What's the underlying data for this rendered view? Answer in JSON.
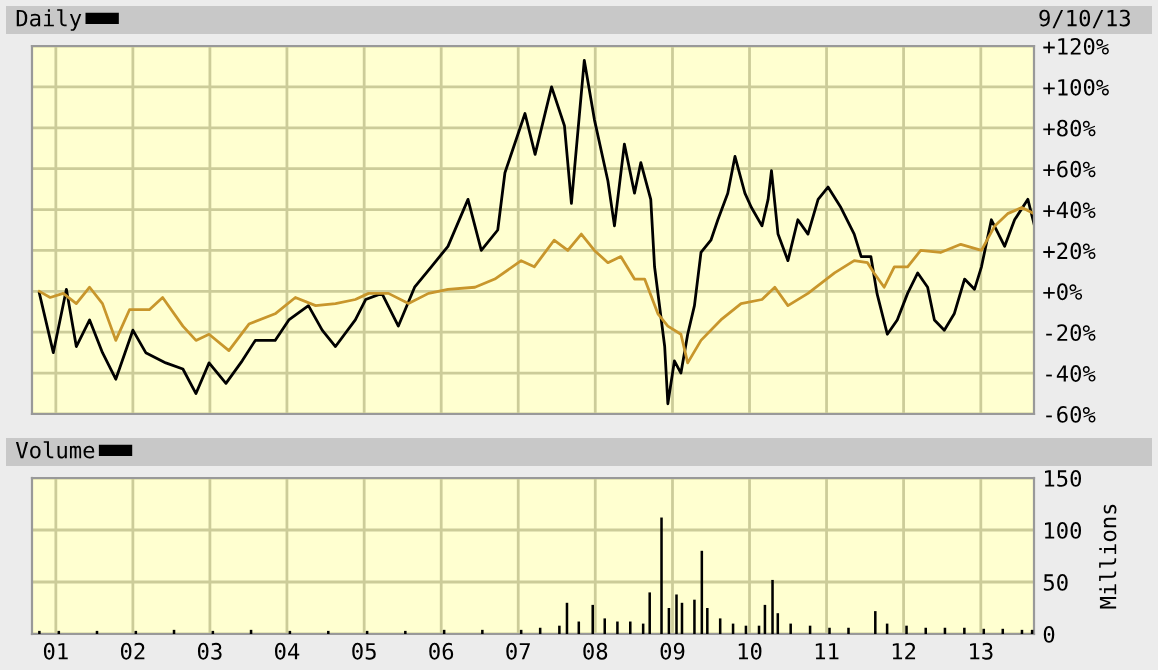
{
  "chart_data": [
    {
      "type": "line",
      "legend": "top",
      "grid": true,
      "tick_labels": "y",
      "annotations": [
        "9/10/13"
      ],
      "xlim": [
        "2000-09-10",
        "2013-09-10"
      ],
      "xticks": [
        {
          "value": "2001-01-01",
          "label": null
        },
        {
          "value": "2002-01-01",
          "label": null
        },
        {
          "value": "2003-01-01",
          "label": null
        },
        {
          "value": "2004-01-01",
          "label": null
        },
        {
          "value": "2005-01-01",
          "label": null
        },
        {
          "value": "2006-01-01",
          "label": null
        },
        {
          "value": "2007-01-01",
          "label": null
        },
        {
          "value": "2008-01-01",
          "label": null
        },
        {
          "value": "2009-01-01",
          "label": null
        },
        {
          "value": "2010-01-01",
          "label": null
        },
        {
          "value": "2011-01-01",
          "label": null
        },
        {
          "value": "2012-01-01",
          "label": null
        },
        {
          "value": "2013-01-01",
          "label": null
        }
      ],
      "ylim": [
        -60,
        120
      ],
      "yticks": [
        {
          "value": -60,
          "label": "-60%"
        },
        {
          "value": -40,
          "label": "-40%"
        },
        {
          "value": -20,
          "label": "-20%"
        },
        {
          "value": 0,
          "label": "+0%"
        },
        {
          "value": 20,
          "label": "+20%"
        },
        {
          "value": 40,
          "label": "+40%"
        },
        {
          "value": 60,
          "label": "+60%"
        },
        {
          "value": 80,
          "label": "+80%"
        },
        {
          "value": 100,
          "label": "+100%"
        },
        {
          "value": 120,
          "label": "+120%"
        }
      ],
      "series": [
        {
          "name": "Daily",
          "color": "#000000",
          "x": [
            "2000-10-15",
            "2000-12-20",
            "2001-02-20",
            "2001-04-08",
            "2001-06-10",
            "2001-08-10",
            "2001-10-12",
            "2002-01-01",
            "2002-03-03",
            "2002-06-06",
            "2002-08-26",
            "2002-10-27",
            "2002-12-28",
            "2003-03-18",
            "2003-06-03",
            "2003-08-04",
            "2003-11-06",
            "2004-01-10",
            "2004-04-12",
            "2004-06-16",
            "2004-08-18",
            "2004-11-20",
            "2005-01-08",
            "2005-03-26",
            "2005-06-12",
            "2005-08-28",
            "2005-11-15",
            "2006-02-02",
            "2006-05-08",
            "2006-07-10",
            "2006-09-26",
            "2006-10-30",
            "2007-02-02",
            "2007-03-22",
            "2007-06-08",
            "2007-08-08",
            "2007-09-10",
            "2007-11-10",
            "2007-12-28",
            "2008-03-01",
            "2008-04-01",
            "2008-05-18",
            "2008-07-05",
            "2008-08-04",
            "2008-09-20",
            "2008-10-08",
            "2008-11-25",
            "2008-12-10",
            "2009-01-10",
            "2009-02-10",
            "2009-03-14",
            "2009-04-15",
            "2009-05-16",
            "2009-07-02",
            "2009-08-04",
            "2009-09-20",
            "2009-10-24",
            "2009-12-10",
            "2010-01-10",
            "2010-03-01",
            "2010-03-30",
            "2010-04-15",
            "2010-05-16",
            "2010-07-02",
            "2010-08-18",
            "2010-10-05",
            "2010-11-22",
            "2011-01-08",
            "2011-03-10",
            "2011-05-12",
            "2011-06-14",
            "2011-07-30",
            "2011-08-28",
            "2011-10-16",
            "2011-12-02",
            "2012-01-20",
            "2012-03-08",
            "2012-04-24",
            "2012-05-26",
            "2012-07-12",
            "2012-08-28",
            "2012-10-16",
            "2012-12-02",
            "2013-01-04",
            "2013-02-20",
            "2013-04-24",
            "2013-06-10",
            "2013-08-12",
            "2013-09-10"
          ],
          "values": [
            -1,
            -30,
            1,
            -27,
            -14,
            -30,
            -43,
            -19,
            -30,
            -35,
            -38,
            -50,
            -35,
            -45,
            -34,
            -24,
            -24,
            -14,
            -7,
            -19,
            -27,
            -14,
            -4,
            -1,
            -17,
            2,
            12,
            22,
            45,
            20,
            30,
            58,
            87,
            67,
            100,
            81,
            43,
            113,
            84,
            54,
            32,
            72,
            48,
            63,
            45,
            12,
            -27,
            -55,
            -34,
            -40,
            -21,
            -7,
            19,
            25,
            35,
            48,
            66,
            48,
            41,
            32,
            45,
            59,
            28,
            15,
            35,
            28,
            45,
            51,
            41,
            28,
            17,
            17,
            -1,
            -21,
            -14,
            -1,
            9,
            2,
            -14,
            -19,
            -11,
            6,
            1,
            12,
            35,
            22,
            35,
            45,
            33
          ]
        },
        {
          "color": "#c8962c",
          "x": [
            "2000-10-15",
            "2000-12-05",
            "2001-02-05",
            "2001-04-08",
            "2001-06-10",
            "2001-08-10",
            "2001-10-12",
            "2001-12-16",
            "2002-03-20",
            "2002-05-22",
            "2002-08-26",
            "2002-10-27",
            "2002-12-28",
            "2003-04-01",
            "2003-07-05",
            "2003-11-06",
            "2004-02-10",
            "2004-05-16",
            "2004-08-18",
            "2004-11-20",
            "2005-01-22",
            "2005-04-26",
            "2005-07-30",
            "2005-11-02",
            "2006-02-02",
            "2006-06-10",
            "2006-09-12",
            "2007-01-15",
            "2007-03-18",
            "2007-06-20",
            "2007-08-24",
            "2007-10-27",
            "2007-12-28",
            "2008-03-01",
            "2008-05-01",
            "2008-07-05",
            "2008-08-22",
            "2008-10-24",
            "2008-12-10",
            "2009-02-10",
            "2009-03-14",
            "2009-05-16",
            "2009-08-18",
            "2009-11-22",
            "2010-03-01",
            "2010-05-01",
            "2010-07-02",
            "2010-10-05",
            "2011-02-08",
            "2011-05-12",
            "2011-07-14",
            "2011-08-14",
            "2011-10-01",
            "2011-11-18",
            "2012-01-20",
            "2012-03-22",
            "2012-06-24",
            "2012-09-28",
            "2013-01-04",
            "2013-03-08",
            "2013-05-08",
            "2013-07-14",
            "2013-09-10"
          ],
          "values": [
            0,
            -3,
            -1,
            -6,
            2,
            -6,
            -24,
            -9,
            -9,
            -3,
            -17,
            -24,
            -21,
            -29,
            -16,
            -11,
            -3,
            -7,
            -6,
            -4,
            -1,
            -1,
            -6,
            -1,
            1,
            2,
            6,
            15,
            12,
            25,
            20,
            28,
            20,
            14,
            17,
            6,
            6,
            -11,
            -17,
            -21,
            -35,
            -24,
            -14,
            -6,
            -4,
            2,
            -7,
            -1,
            9,
            15,
            14,
            9,
            2,
            12,
            12,
            20,
            19,
            23,
            20,
            32,
            38,
            41,
            38
          ]
        }
      ]
    },
    {
      "type": "bar",
      "legend": "top",
      "grid": true,
      "ylabel": "Millions",
      "xlim": [
        "2000-09-10",
        "2013-09-10"
      ],
      "xticks": [
        {
          "value": "2001-01-01",
          "label": "01"
        },
        {
          "value": "2002-01-01",
          "label": "02"
        },
        {
          "value": "2003-01-01",
          "label": "03"
        },
        {
          "value": "2004-01-01",
          "label": "04"
        },
        {
          "value": "2005-01-01",
          "label": "05"
        },
        {
          "value": "2006-01-01",
          "label": "06"
        },
        {
          "value": "2007-01-01",
          "label": "07"
        },
        {
          "value": "2008-01-01",
          "label": "08"
        },
        {
          "value": "2009-01-01",
          "label": "09"
        },
        {
          "value": "2010-01-01",
          "label": "10"
        },
        {
          "value": "2011-01-01",
          "label": "11"
        },
        {
          "value": "2012-01-01",
          "label": "12"
        },
        {
          "value": "2013-01-01",
          "label": "13"
        }
      ],
      "ylim": [
        0,
        150
      ],
      "yticks": [
        0,
        50,
        100,
        150
      ],
      "series": [
        {
          "name": "Volume",
          "color": "#000000",
          "x": [
            "2000-10-15",
            "2001-01-15",
            "2001-07-15",
            "2002-01-15",
            "2002-07-15",
            "2003-01-15",
            "2003-07-15",
            "2004-01-15",
            "2004-07-15",
            "2005-01-15",
            "2005-07-15",
            "2006-01-15",
            "2006-07-15",
            "2007-01-15",
            "2007-04-15",
            "2007-07-15",
            "2007-08-20",
            "2007-10-15",
            "2007-12-20",
            "2008-02-15",
            "2008-04-15",
            "2008-06-15",
            "2008-08-15",
            "2008-09-15",
            "2008-11-10",
            "2008-12-15",
            "2009-01-20",
            "2009-02-15",
            "2009-04-15",
            "2009-05-20",
            "2009-06-15",
            "2009-08-15",
            "2009-10-15",
            "2009-12-15",
            "2010-02-15",
            "2010-03-15",
            "2010-04-20",
            "2010-05-15",
            "2010-07-15",
            "2010-10-15",
            "2011-01-15",
            "2011-04-15",
            "2011-08-20",
            "2011-10-15",
            "2012-01-15",
            "2012-04-15",
            "2012-07-15",
            "2012-10-15",
            "2013-01-15",
            "2013-04-15",
            "2013-07-15",
            "2013-09-01"
          ],
          "values": [
            3,
            3,
            3,
            3,
            4,
            3,
            4,
            3,
            3,
            3,
            3,
            4,
            4,
            4,
            6,
            8,
            30,
            12,
            28,
            15,
            12,
            12,
            10,
            40,
            112,
            25,
            38,
            30,
            33,
            80,
            25,
            15,
            10,
            8,
            8,
            28,
            52,
            20,
            10,
            8,
            6,
            6,
            22,
            10,
            8,
            6,
            6,
            6,
            5,
            5,
            4,
            4
          ]
        }
      ]
    }
  ]
}
